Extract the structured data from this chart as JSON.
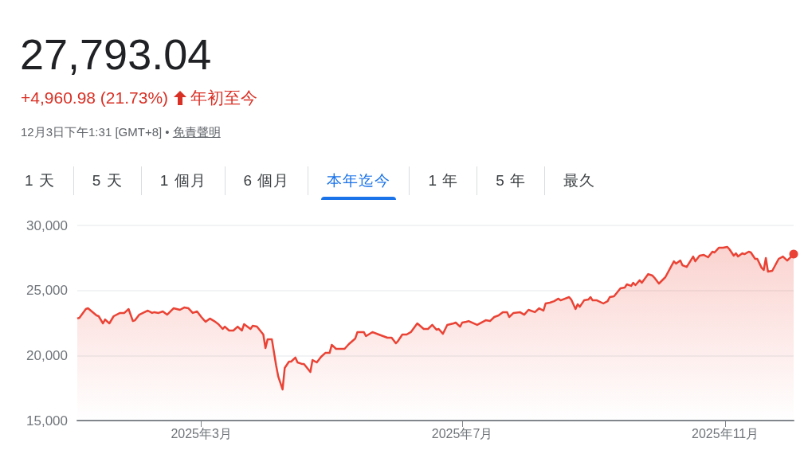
{
  "chart_data": {
    "type": "area",
    "title": "27,793.04",
    "subtitle": "+4,960.98 (21.73%)",
    "annotations": [
      "年初至今",
      "12月3日下午1:31 [GMT+8] •",
      "免責聲明",
      "1 天",
      "5 天",
      "1 個月",
      "6 個月",
      "本年迄今",
      "1 年",
      "5 年",
      "最久"
    ],
    "x": [
      "2025-01-02",
      "2025-01-03",
      "2025-01-06",
      "2025-01-07",
      "2025-01-11",
      "2025-01-12",
      "2025-01-14",
      "2025-01-15",
      "2025-01-17",
      "2025-01-19",
      "2025-01-22",
      "2025-01-24",
      "2025-01-26",
      "2025-01-28",
      "2025-01-29",
      "2025-01-31",
      "2025-02-04",
      "2025-02-06",
      "2025-02-07",
      "2025-02-09",
      "2025-02-11",
      "2025-02-13",
      "2025-02-16",
      "2025-02-19",
      "2025-02-21",
      "2025-02-23",
      "2025-02-25",
      "2025-02-27",
      "2025-03-01",
      "2025-03-03",
      "2025-03-05",
      "2025-03-07",
      "2025-03-09",
      "2025-03-11",
      "2025-03-12",
      "2025-03-14",
      "2025-03-16",
      "2025-03-18",
      "2025-03-20",
      "2025-03-21",
      "2025-03-24",
      "2025-03-25",
      "2025-03-27",
      "2025-03-30",
      "2025-03-31",
      "2025-04-01",
      "2025-04-03",
      "2025-04-05",
      "2025-04-06",
      "2025-04-08",
      "2025-04-09",
      "2025-04-11",
      "2025-04-12",
      "2025-04-14",
      "2025-04-15",
      "2025-04-17",
      "2025-04-18",
      "2025-04-21",
      "2025-04-22",
      "2025-04-24",
      "2025-04-26",
      "2025-04-28",
      "2025-04-30",
      "2025-05-01",
      "2025-05-03",
      "2025-05-07",
      "2025-05-09",
      "2025-05-12",
      "2025-05-13",
      "2025-05-16",
      "2025-05-17",
      "2025-05-20",
      "2025-05-23",
      "2025-05-24",
      "2025-05-27",
      "2025-05-29",
      "2025-05-31",
      "2025-06-01",
      "2025-06-03",
      "2025-06-05",
      "2025-06-07",
      "2025-06-10",
      "2025-06-13",
      "2025-06-15",
      "2025-06-17",
      "2025-06-19",
      "2025-06-20",
      "2025-06-22",
      "2025-06-24",
      "2025-06-27",
      "2025-06-28",
      "2025-06-30",
      "2025-07-01",
      "2025-07-03",
      "2025-07-04",
      "2025-07-08",
      "2025-07-12",
      "2025-07-14",
      "2025-07-16",
      "2025-07-18",
      "2025-07-20",
      "2025-07-22",
      "2025-07-23",
      "2025-07-25",
      "2025-07-28",
      "2025-07-30",
      "2025-08-01",
      "2025-08-04",
      "2025-08-06",
      "2025-08-08",
      "2025-08-09",
      "2025-08-11",
      "2025-08-13",
      "2025-08-15",
      "2025-08-16",
      "2025-08-20",
      "2025-08-21",
      "2025-08-23",
      "2025-08-24",
      "2025-08-25",
      "2025-08-27",
      "2025-08-29",
      "2025-08-30",
      "2025-08-31",
      "2025-09-02",
      "2025-09-05",
      "2025-09-07",
      "2025-09-08",
      "2025-09-10",
      "2025-09-13",
      "2025-09-15",
      "2025-09-16",
      "2025-09-18",
      "2025-09-19",
      "2025-09-20",
      "2025-09-22",
      "2025-09-23",
      "2025-09-26",
      "2025-09-28",
      "2025-09-29",
      "2025-10-01",
      "2025-10-04",
      "2025-10-08",
      "2025-10-09",
      "2025-10-11",
      "2025-10-12",
      "2025-10-14",
      "2025-10-17",
      "2025-10-18",
      "2025-10-20",
      "2025-10-22",
      "2025-10-24",
      "2025-10-26",
      "2025-10-27",
      "2025-10-29",
      "2025-10-31",
      "2025-11-02",
      "2025-11-03",
      "2025-11-05",
      "2025-11-06",
      "2025-11-07",
      "2025-11-09",
      "2025-11-10",
      "2025-11-12",
      "2025-11-13",
      "2025-11-15",
      "2025-11-16",
      "2025-11-18",
      "2025-11-19",
      "2025-11-20",
      "2025-11-21",
      "2025-11-23",
      "2025-11-26",
      "2025-11-28",
      "2025-11-30",
      "2025-12-03"
    ],
    "series": [
      {
        "color": "#ea4335",
        "values": [
          22840,
          22900,
          23570,
          23630,
          23080,
          23020,
          22470,
          22770,
          22470,
          23020,
          23270,
          23270,
          23570,
          22650,
          22710,
          23140,
          23450,
          23270,
          23330,
          23270,
          23390,
          23140,
          23630,
          23510,
          23690,
          23630,
          23270,
          23390,
          22960,
          22590,
          22840,
          22650,
          22410,
          22040,
          22220,
          21920,
          21920,
          22220,
          21920,
          22410,
          22040,
          22280,
          22220,
          21610,
          20570,
          21240,
          21240,
          19220,
          18370,
          17390,
          19040,
          19530,
          19530,
          19840,
          19470,
          19350,
          19350,
          18730,
          19650,
          19470,
          19900,
          20200,
          20200,
          20820,
          20510,
          20510,
          20880,
          21310,
          21800,
          21800,
          21490,
          21800,
          21610,
          21550,
          21370,
          21370,
          20940,
          21120,
          21610,
          21610,
          21800,
          22470,
          22040,
          22040,
          22350,
          21980,
          22040,
          21670,
          22350,
          22470,
          22530,
          22220,
          22530,
          22590,
          22650,
          22350,
          22710,
          22650,
          22960,
          23080,
          23330,
          23330,
          22960,
          23270,
          23330,
          23140,
          23510,
          23330,
          23630,
          23450,
          24000,
          24060,
          24180,
          24370,
          24240,
          24490,
          24300,
          23570,
          23940,
          23750,
          24240,
          24300,
          24490,
          24240,
          24240,
          24000,
          24180,
          24490,
          24550,
          25160,
          25220,
          25470,
          25350,
          25590,
          25410,
          25780,
          25590,
          26260,
          26140,
          25960,
          25530,
          26020,
          27240,
          27060,
          27300,
          26940,
          26810,
          27610,
          27240,
          27670,
          27730,
          27550,
          27980,
          27920,
          28280,
          28280,
          28350,
          28160,
          27670,
          27860,
          27610,
          27860,
          27790,
          27980,
          27920,
          27430,
          27430,
          26750,
          26570,
          27490,
          26450,
          26510,
          27430,
          27610,
          27300,
          27790
        ]
      }
    ],
    "xlim": [
      "2025-01-02",
      "2025-12-03"
    ],
    "xticks": [
      {
        "value": "2025-03-01",
        "label": "2025年3月"
      },
      {
        "value": "2025-07-01",
        "label": "2025年7月"
      },
      {
        "value": "2025-11-01",
        "label": "2025年11月"
      }
    ],
    "ylim": [
      15000,
      30000
    ],
    "yticks": [
      {
        "value": 15000,
        "label": "15,000"
      },
      {
        "value": 20000,
        "label": "20,000"
      },
      {
        "value": 25000,
        "label": "25,000"
      },
      {
        "value": 30000,
        "label": "30,000"
      }
    ],
    "grid": "y"
  }
}
